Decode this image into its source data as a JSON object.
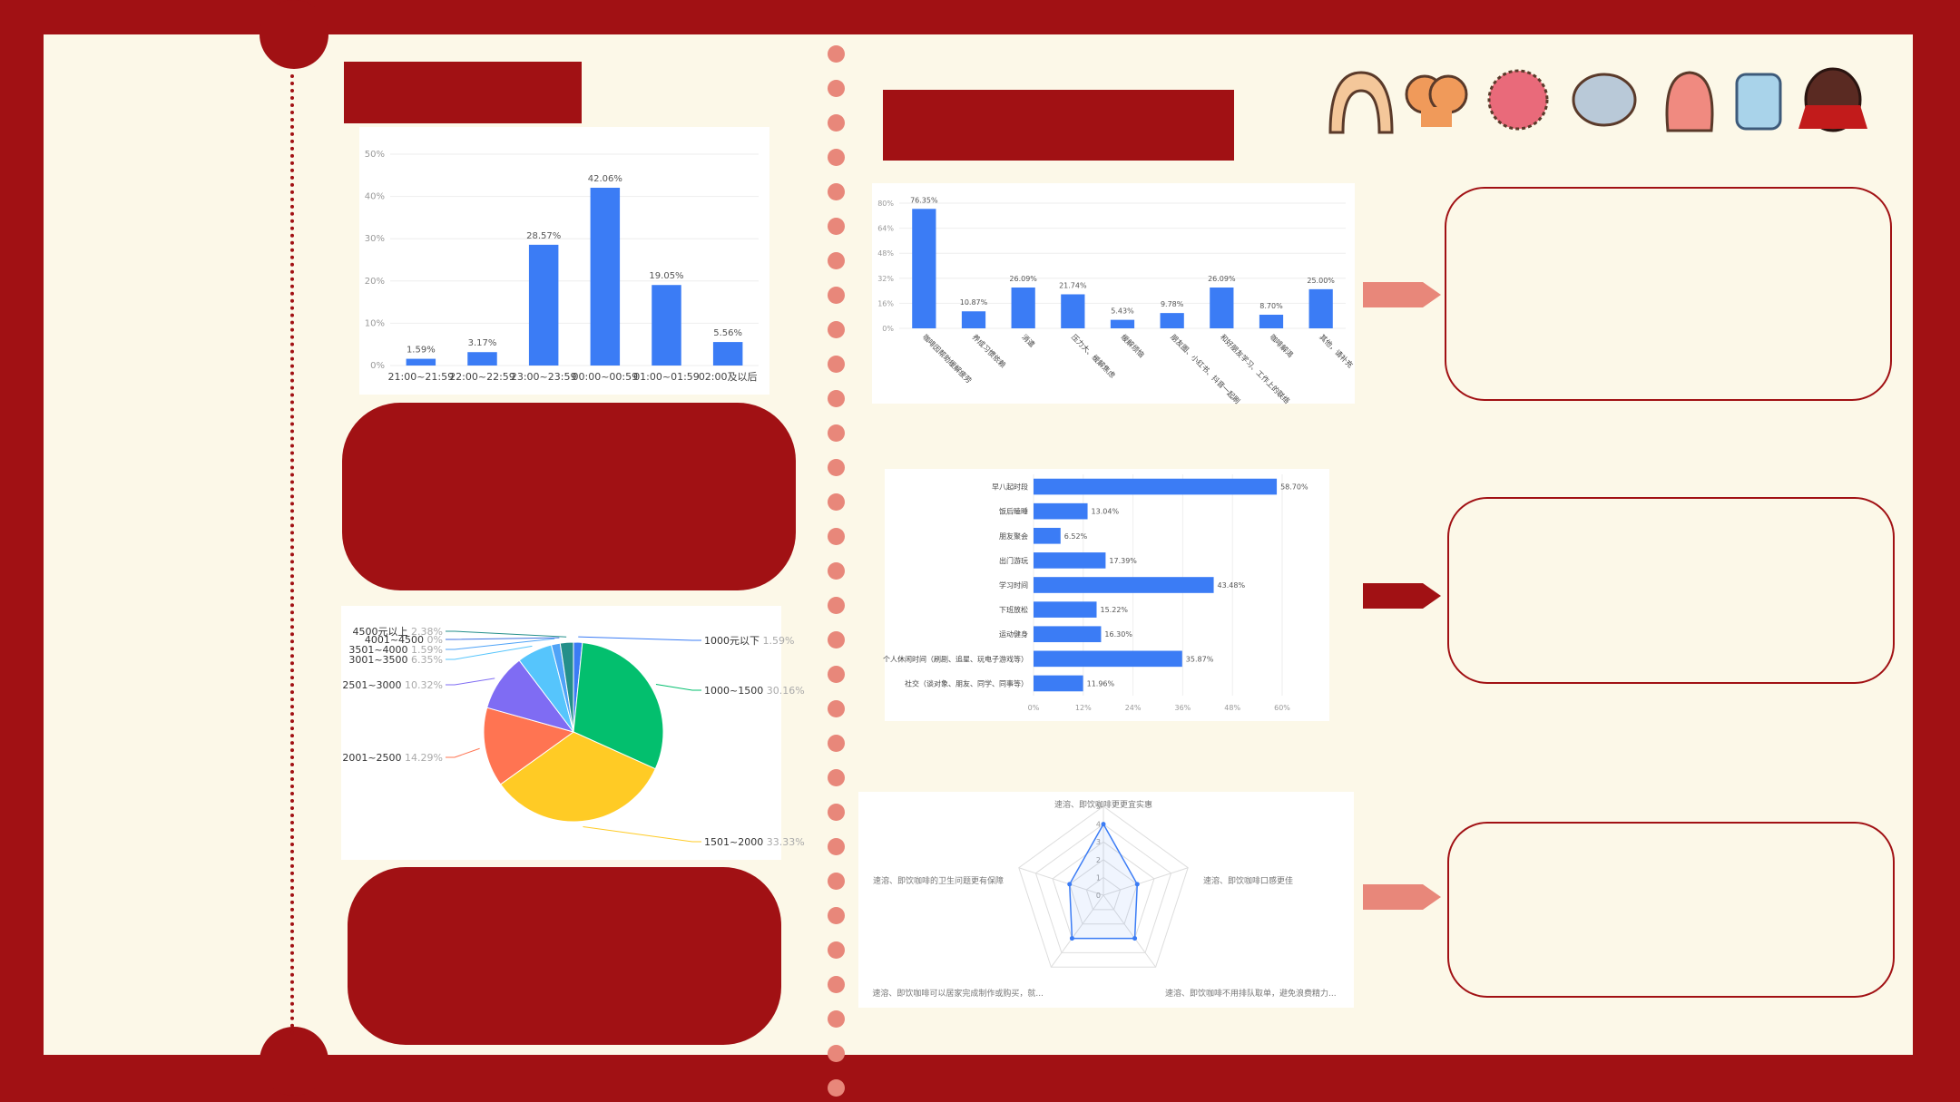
{
  "colors": {
    "frame": "#a11114",
    "paper": "#fcf8e8",
    "bar": "#3b7cf5",
    "dot": "#e8877a",
    "arrow_light": "#e8877a"
  },
  "chart_data": [
    {
      "type": "bar",
      "categories": [
        "21:00~21:59",
        "22:00~22:59",
        "23:00~23:59",
        "00:00~00:59",
        "01:00~01:59",
        "02:00及以后"
      ],
      "values": [
        1.59,
        3.17,
        28.57,
        42.06,
        19.05,
        5.56
      ],
      "value_labels": [
        "1.59%",
        "3.17%",
        "28.57%",
        "42.06%",
        "19.05%",
        "5.56%"
      ],
      "yticks": [
        "0%",
        "10%",
        "20%",
        "30%",
        "40%",
        "50%"
      ],
      "ylim": [
        0,
        50
      ]
    },
    {
      "type": "bar",
      "categories": [
        "咖啡因帮助缓解疲劳",
        "养成习惯依赖",
        "消遣",
        "压力大、缓解焦虑",
        "缓解烦恼",
        "朋友圈、小红书、抖音一起刷",
        "和好朋友学习、工作上的联络",
        "咖啡解渴",
        "其他，请补充"
      ],
      "values": [
        76.35,
        10.87,
        26.09,
        21.74,
        5.43,
        9.78,
        26.09,
        8.7,
        25
      ],
      "value_labels": [
        "76.35%",
        "10.87%",
        "26.09%",
        "21.74%",
        "5.43%",
        "9.78%",
        "26.09%",
        "8.70%",
        "25.00%"
      ],
      "yticks": [
        "0%",
        "16%",
        "32%",
        "48%",
        "64%",
        "80%"
      ],
      "ylim": [
        0,
        80
      ]
    },
    {
      "type": "bar",
      "orientation": "horizontal",
      "categories": [
        "早八起时段",
        "饭后瞌睡",
        "朋友聚会",
        "出门游玩",
        "学习时间",
        "下班放松",
        "运动健身",
        "个人休闲时间（刷剧、追星、玩电子游戏等）",
        "社交（谈对象、朋友、同学、同事等）"
      ],
      "values": [
        58.7,
        13.04,
        6.52,
        17.39,
        43.48,
        15.22,
        16.3,
        35.87,
        11.96
      ],
      "value_labels": [
        "58.70%",
        "13.04%",
        "6.52%",
        "17.39%",
        "43.48%",
        "15.22%",
        "16.30%",
        "35.87%",
        "11.96%"
      ],
      "xticks": [
        "0%",
        "12%",
        "24%",
        "36%",
        "48%",
        "60%"
      ],
      "xlim": [
        0,
        60
      ]
    },
    {
      "type": "pie",
      "slices": [
        {
          "label": "1000元以下",
          "value": 1.59,
          "pct": "1.59%",
          "color": "#3b7cf5"
        },
        {
          "label": "1000~1500",
          "value": 30.16,
          "pct": "30.16%",
          "color": "#03bf6e"
        },
        {
          "label": "1501~2000",
          "value": 33.33,
          "pct": "33.33%",
          "color": "#ffcb25"
        },
        {
          "label": "2001~2500",
          "value": 14.29,
          "pct": "14.29%",
          "color": "#ff7452"
        },
        {
          "label": "2501~3000",
          "value": 10.32,
          "pct": "10.32%",
          "color": "#7f6cf3"
        },
        {
          "label": "3001~3500",
          "value": 6.35,
          "pct": "6.35%",
          "color": "#56c5fc"
        },
        {
          "label": "3501~4000",
          "value": 1.59,
          "pct": "1.59%",
          "color": "#4fa3f7"
        },
        {
          "label": "4001~4500",
          "value": 0,
          "pct": "0%",
          "color": "#3d6fe0"
        },
        {
          "label": "4500元以上",
          "value": 2.38,
          "pct": "2.38%",
          "color": "#248f8a"
        }
      ]
    },
    {
      "type": "radar",
      "axes": [
        "速溶、即饮咖啡更更宜实惠",
        "速溶、即饮咖啡口感更佳",
        "速溶、即饮咖啡不用排队取单，避免浪费精力...",
        "速溶、即饮咖啡可以居家完成制作或购买，就...",
        "速溶、即饮咖啡的卫生问题更有保障"
      ],
      "values": [
        4,
        2,
        3,
        3,
        2
      ],
      "rticks": [
        "0",
        "1",
        "2",
        "3",
        "4",
        "5"
      ],
      "rmax": 5
    }
  ]
}
